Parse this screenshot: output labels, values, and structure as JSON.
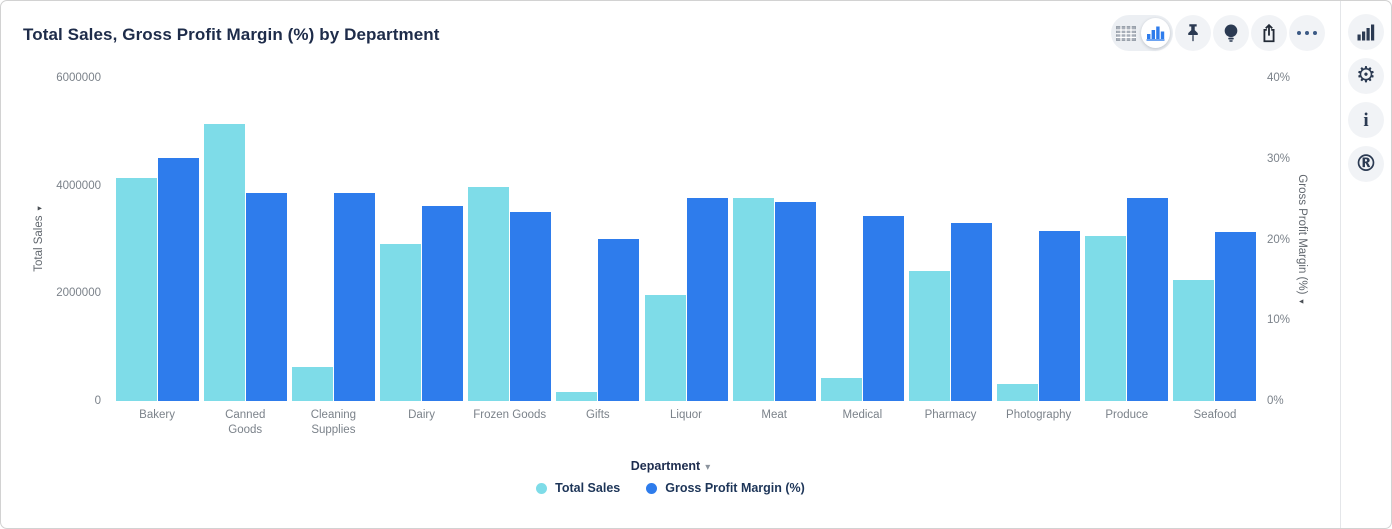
{
  "title": "Total Sales, Gross Profit Margin (%) by Department",
  "toolbar": {
    "view_toggle": {
      "inactive": "table-view",
      "active": "chart-view"
    },
    "buttons": [
      "pin",
      "insights",
      "share",
      "more-options"
    ]
  },
  "sidebar": {
    "buttons": [
      "chart",
      "settings",
      "info",
      "r-logo"
    ]
  },
  "icons": {
    "dropdown_arrow": "▾",
    "axis_arrow": "▾",
    "gear_glyph": "⚙",
    "info_glyph": "i",
    "r_logo_glyph": "®"
  },
  "chart_data": {
    "type": "bar",
    "title": "Total Sales, Gross Profit Margin (%) by Department",
    "categories": [
      "Bakery",
      "Canned Goods",
      "Cleaning Supplies",
      "Dairy",
      "Frozen Goods",
      "Gifts",
      "Liquor",
      "Meat",
      "Medical",
      "Pharmacy",
      "Photography",
      "Produce",
      "Seafood"
    ],
    "series": [
      {
        "name": "Total Sales",
        "axis": "left",
        "color": "#7EDCE8",
        "values": [
          4140000,
          5140000,
          630000,
          2920000,
          3970000,
          170000,
          1970000,
          3780000,
          420000,
          2410000,
          320000,
          3060000,
          2250000
        ]
      },
      {
        "name": "Gross Profit Margin (%)",
        "axis": "right",
        "color": "#2E7CEC",
        "values": [
          30.1,
          25.8,
          25.7,
          24.1,
          23.4,
          20.1,
          25.2,
          24.6,
          22.9,
          22.1,
          21.0,
          25.2,
          20.9
        ]
      }
    ],
    "left_axis": {
      "title": "Total Sales",
      "min": 0,
      "max": 6000000,
      "ticks": [
        "6000000",
        "4000000",
        "2000000",
        "0"
      ]
    },
    "right_axis": {
      "title": "Gross Profit Margin (%)",
      "min": 0,
      "max": 40,
      "ticks": [
        "40%",
        "30%",
        "20%",
        "10%",
        "0%"
      ]
    },
    "x_axis": {
      "title": "Department"
    },
    "legend": {
      "position": "bottom",
      "items": [
        {
          "label": "Total Sales",
          "color": "#7EDCE8"
        },
        {
          "label": "Gross Profit Margin (%)",
          "color": "#2E7CEC"
        }
      ]
    },
    "grid": false
  }
}
